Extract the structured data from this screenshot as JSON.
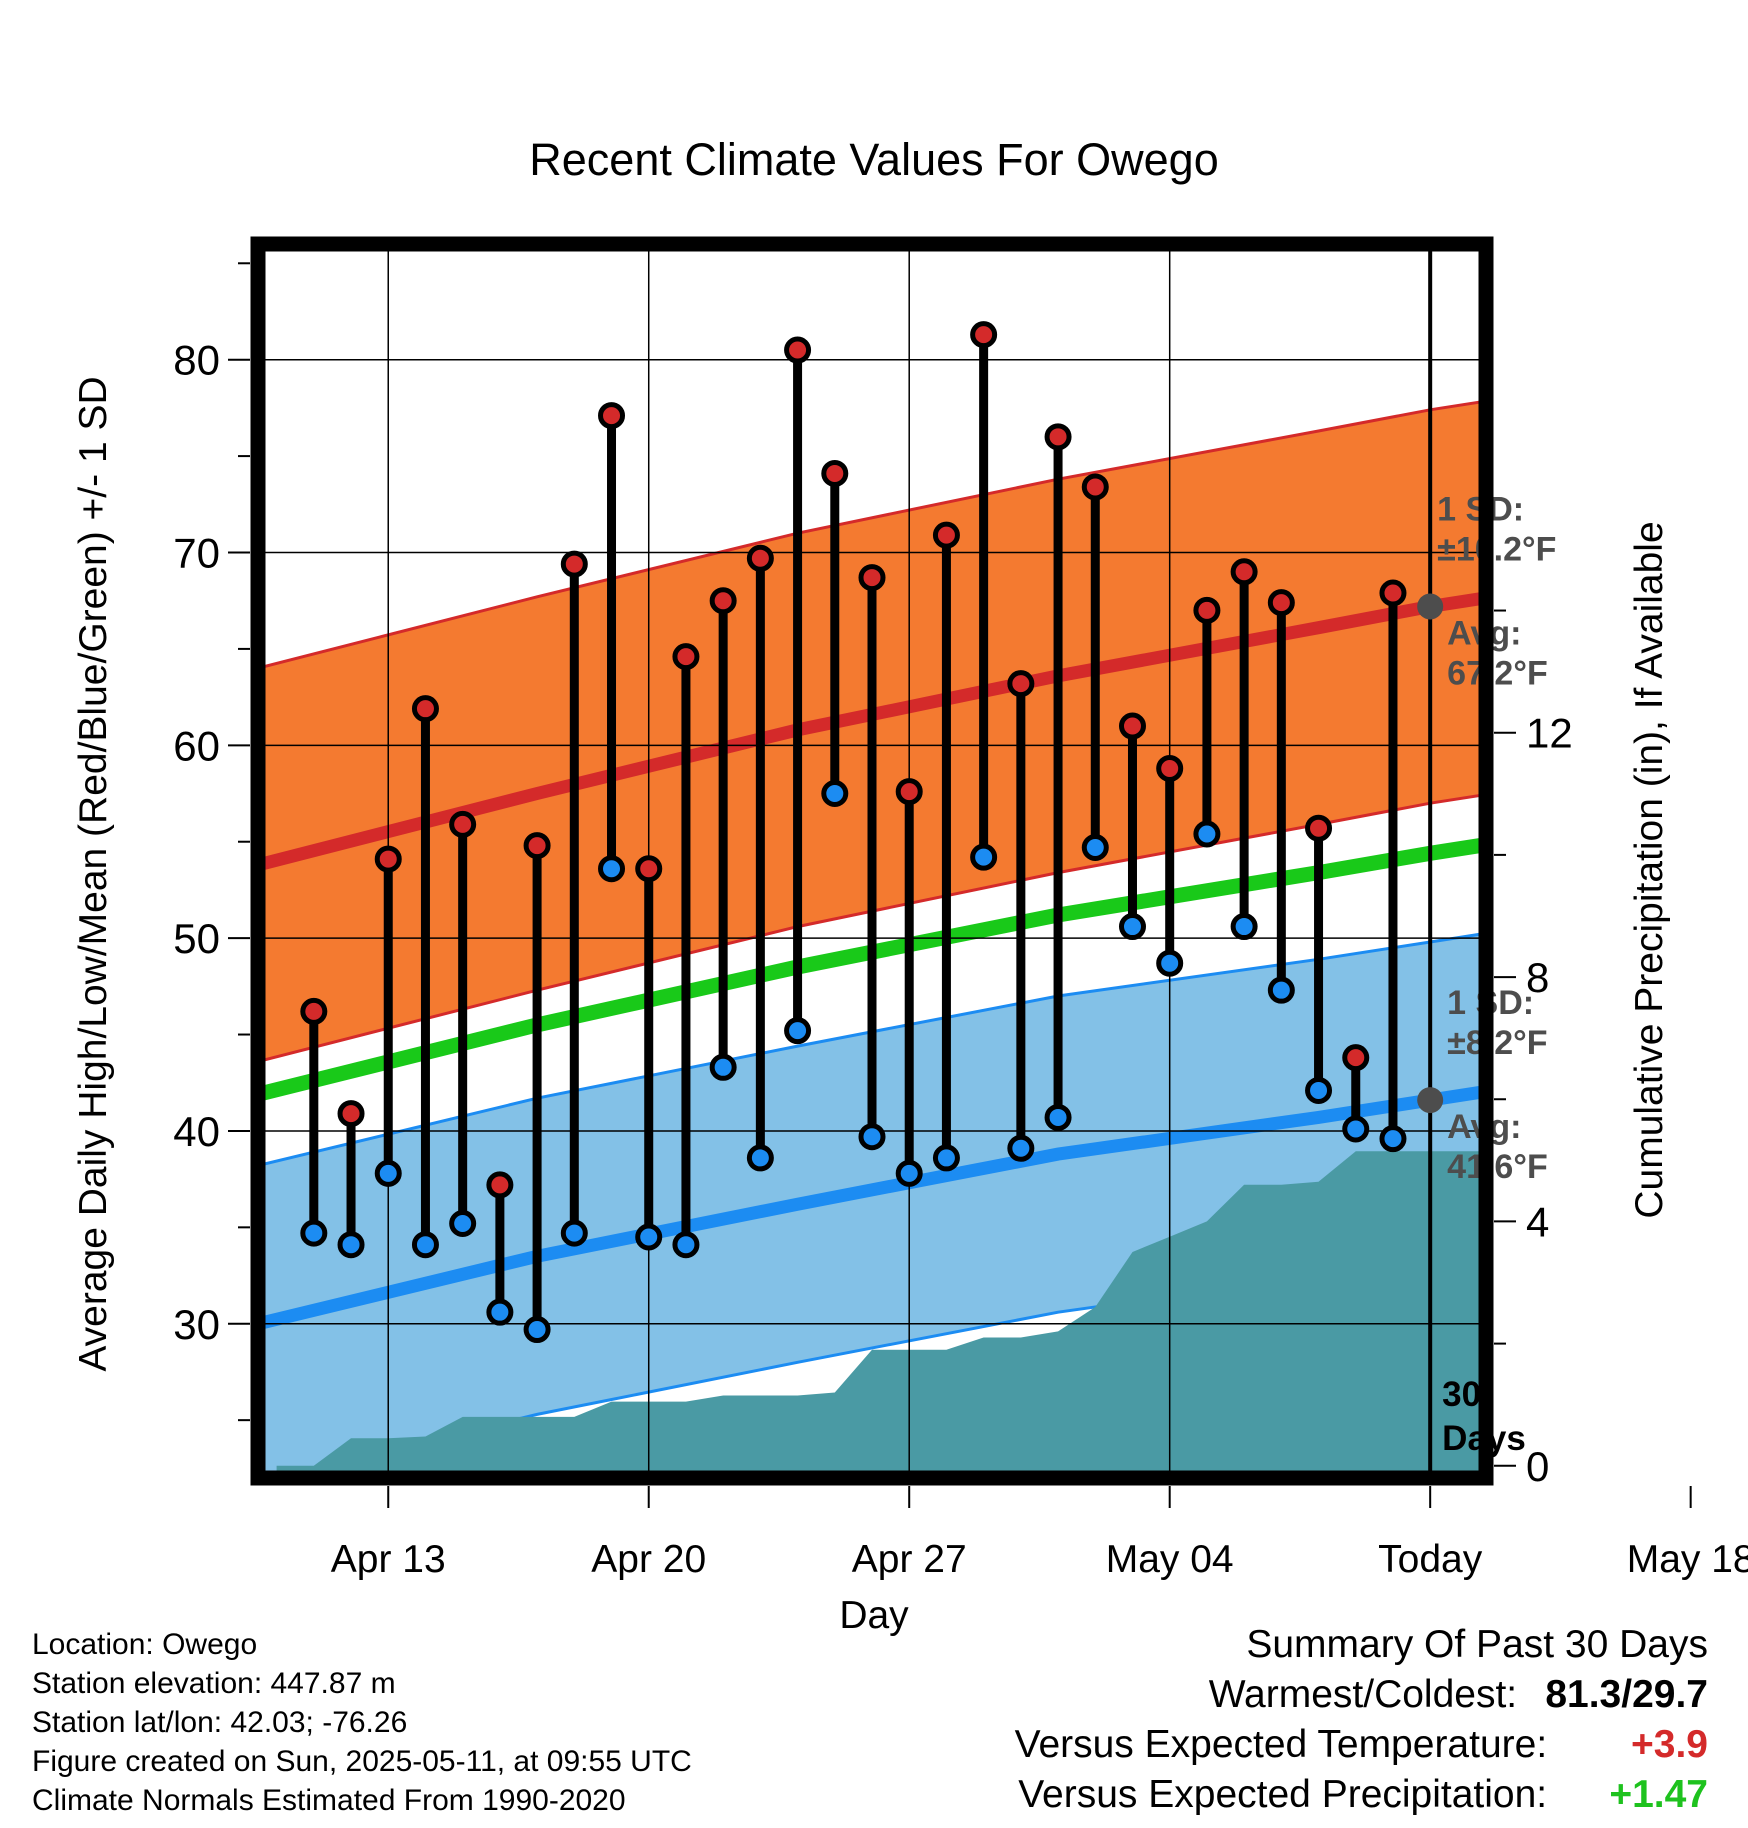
{
  "chart_data": {
    "type": "line",
    "title": "Recent Climate Values For Owego",
    "xlabel": "Day",
    "ylabel": "Average Daily High/Low/Mean (Red/Blue/Green) +/- 1 SD",
    "y2label": "Cumulative Precipitation (in), If Available",
    "ylim": [
      22,
      86
    ],
    "y2lim": [
      -0.2,
      20
    ],
    "xlim": [
      -21.5,
      11.5
    ],
    "x_ticks": [
      {
        "x": -18,
        "label": "Apr 13"
      },
      {
        "x": -11,
        "label": "Apr 20"
      },
      {
        "x": -4,
        "label": "Apr 27"
      },
      {
        "x": 3,
        "label": "May 04"
      },
      {
        "x": 10,
        "label": "Today"
      },
      {
        "x": 17,
        "label": "May 18"
      }
    ],
    "y_ticks": [
      30,
      40,
      50,
      60,
      70,
      80
    ],
    "y2_ticks": [
      0,
      4,
      8,
      12
    ],
    "today_x": 10,
    "today_label": [
      "30",
      "Days"
    ],
    "grid": true,
    "normal_high": {
      "x": [
        -21.5,
        -14,
        -7,
        0,
        7,
        10,
        14,
        21.5
      ],
      "mean": [
        53.8,
        57.5,
        60.8,
        63.6,
        66.1,
        67.2,
        68.4,
        70.0
      ],
      "sd": 10.2,
      "sd_label": [
        "1 SD:",
        "±10.2°F"
      ],
      "avg_label": [
        "Avg:",
        "67.2°F"
      ],
      "color": "#f47a30",
      "line_color": "#d42a2a"
    },
    "normal_low": {
      "x": [
        -21.5,
        -14,
        -7,
        0,
        7,
        10,
        14,
        21.5
      ],
      "mean": [
        30.0,
        33.5,
        36.2,
        38.8,
        40.7,
        41.6,
        42.8,
        44.8
      ],
      "sd": 8.2,
      "sd_label": [
        "1 SD:",
        "±8.2°F"
      ],
      "avg_label": [
        "Avg:",
        "41.6°F"
      ],
      "color": "#83c1e7",
      "line_color": "#1c8cf2"
    },
    "normal_mean": {
      "x": [
        -21.5,
        -14,
        -7,
        0,
        7,
        10,
        14,
        21.5
      ],
      "values": [
        41.9,
        45.5,
        48.5,
        51.2,
        53.4,
        54.4,
        55.6,
        57.4
      ],
      "color": "#19c919"
    },
    "daily": {
      "x": [
        -20,
        -19,
        -18,
        -17,
        -16,
        -15,
        -14,
        -13,
        -12,
        -11,
        -10,
        -9,
        -8,
        -7,
        -6,
        -5,
        -4,
        -3,
        -2,
        -1,
        0,
        1,
        2,
        3,
        4,
        5,
        6,
        7,
        8,
        9
      ],
      "high": [
        46.2,
        40.9,
        54.1,
        61.9,
        55.9,
        37.2,
        54.8,
        69.4,
        77.1,
        53.6,
        64.6,
        67.5,
        69.7,
        80.5,
        74.1,
        68.7,
        57.6,
        70.9,
        81.3,
        63.2,
        76.0,
        73.4,
        61.0,
        58.8,
        67.0,
        69.0,
        67.4,
        55.7,
        43.8,
        67.9
      ],
      "low": [
        34.7,
        34.1,
        37.8,
        34.1,
        35.2,
        30.6,
        29.7,
        34.7,
        53.6,
        34.5,
        34.1,
        43.3,
        38.6,
        45.2,
        57.5,
        39.7,
        37.8,
        38.6,
        54.2,
        39.1,
        40.7,
        54.7,
        50.6,
        48.7,
        55.4,
        50.6,
        47.3,
        42.1,
        40.1,
        39.6
      ],
      "high_color": "#d42a2a",
      "low_color": "#1c8cf2"
    },
    "precip": {
      "x": [
        -21,
        -20,
        -19,
        -18,
        -17,
        -16,
        -15,
        -14,
        -13,
        -12,
        -11,
        -10,
        -9,
        -8,
        -7,
        -6,
        -5,
        -4,
        -3,
        -2,
        -1,
        0,
        1,
        2,
        3,
        4,
        5,
        6,
        7,
        8,
        9,
        10,
        21.5
      ],
      "values": [
        0,
        0,
        0.45,
        0.45,
        0.48,
        0.8,
        0.8,
        0.8,
        0.8,
        1.05,
        1.05,
        1.05,
        1.15,
        1.15,
        1.15,
        1.2,
        1.9,
        1.9,
        1.9,
        2.1,
        2.1,
        2.2,
        2.6,
        3.5,
        3.75,
        4.0,
        4.6,
        4.6,
        4.65,
        5.15,
        5.15,
        5.15,
        5.15
      ],
      "color": "#4a9aa4"
    }
  },
  "info": {
    "location": "Location: Owego",
    "elevation": "Station elevation: 447.87 m",
    "latlon": "Station lat/lon: 42.03; -76.26",
    "created": "Figure created on Sun, 2025-05-11, at 09:55 UTC",
    "normals": "Climate Normals Estimated From 1990-2020"
  },
  "summary": {
    "title": "Summary Of Past 30 Days",
    "warm_cold_label": "Warmest/Coldest:",
    "warm_cold_value": "81.3/29.7",
    "temp_label": "Versus Expected Temperature:",
    "temp_value": "+3.9",
    "precip_label": "Versus Expected Precipitation:",
    "precip_value": "+1.47"
  }
}
